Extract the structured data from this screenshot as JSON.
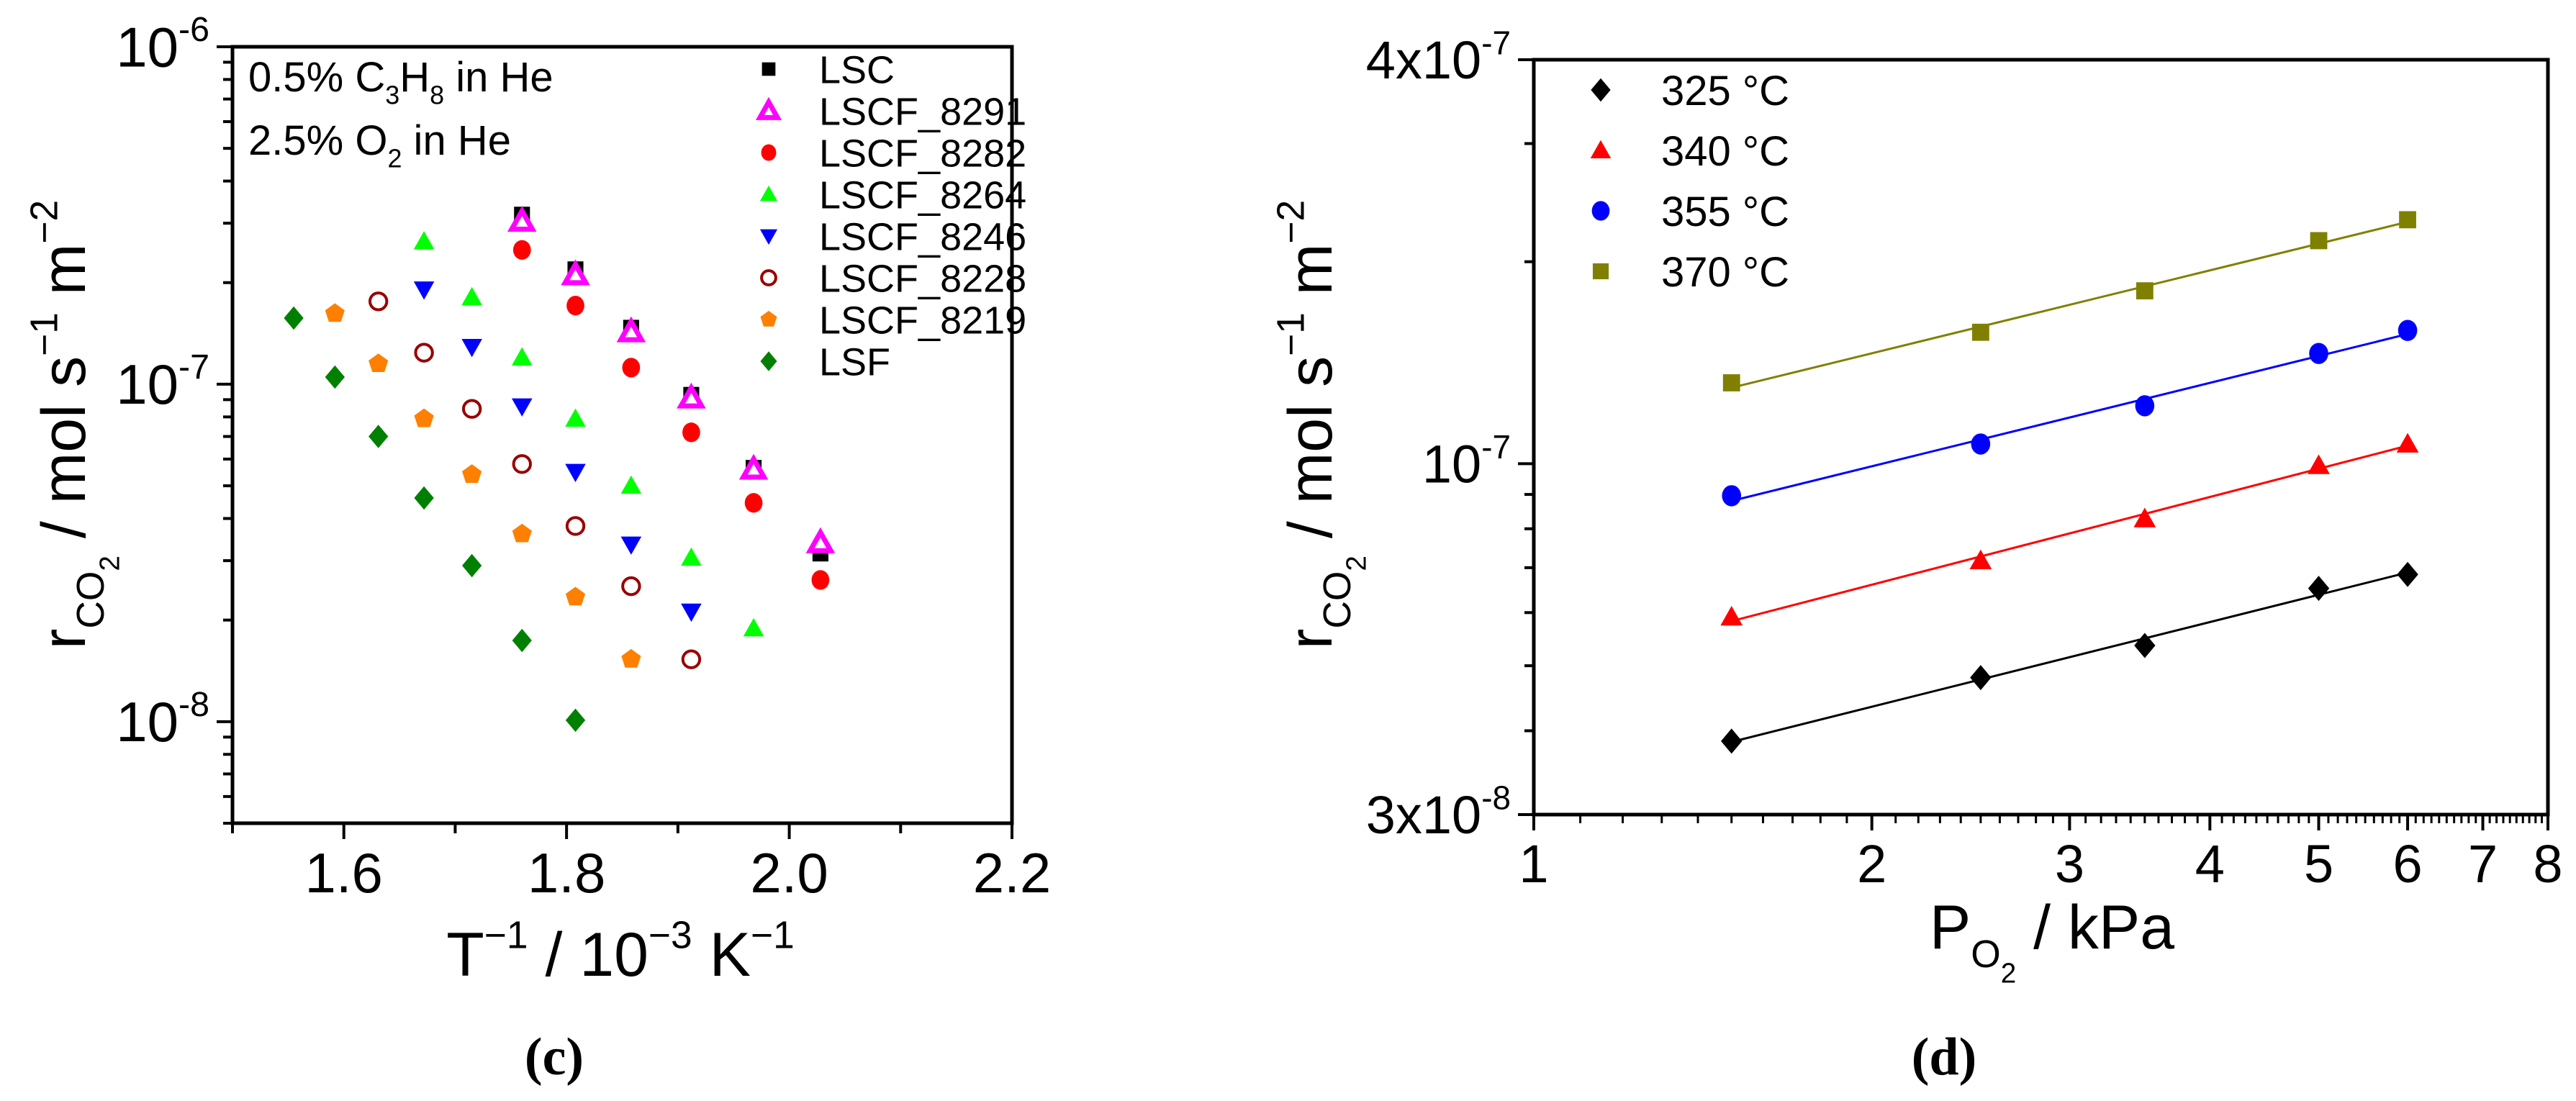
{
  "chart_data": [
    {
      "type": "scatter",
      "panel_label": "(c)",
      "title": "",
      "xlabel_parts": [
        [
          "T",
          0
        ],
        [
          "−1",
          1
        ],
        [
          " / 10",
          0
        ],
        [
          "−3",
          1
        ],
        [
          " K",
          0
        ],
        [
          "−1",
          1
        ]
      ],
      "ylabel_parts": [
        [
          "r",
          0
        ],
        [
          "CO",
          -1
        ],
        [
          "2",
          -2
        ],
        [
          " / mol s",
          0
        ],
        [
          "−1",
          1
        ],
        [
          " m",
          0
        ],
        [
          "−2",
          1
        ]
      ],
      "xscale": "linear",
      "yscale": "log",
      "xlim": [
        1.5,
        2.2
      ],
      "ylim": [
        5e-09,
        1e-06
      ],
      "xticks": [
        {
          "value": 1.6,
          "label": "1.6"
        },
        {
          "value": 1.8,
          "label": "1.8"
        },
        {
          "value": 2.0,
          "label": "2.0"
        },
        {
          "value": 2.2,
          "label": "2.2"
        }
      ],
      "xminor": [
        1.5,
        1.7,
        1.9,
        2.1
      ],
      "yticks": [
        {
          "value": 1e-08,
          "label": "10^-8"
        },
        {
          "value": 1e-07,
          "label": "10^-7"
        },
        {
          "value": 1e-06,
          "label": "10^-6"
        }
      ],
      "grid": false,
      "legend_position": "top-right",
      "annotations": [
        [
          [
            "0.5% C",
            0
          ],
          [
            "3",
            -1
          ],
          [
            "H",
            0
          ],
          [
            "8",
            -1
          ],
          [
            " in He",
            0
          ]
        ],
        [
          [
            "2.5% O",
            0
          ],
          [
            "2",
            -1
          ],
          [
            " in He",
            0
          ]
        ]
      ],
      "series": [
        {
          "name": "LSC",
          "marker": "square",
          "color": "#000000",
          "x": [
            1.76,
            1.808,
            1.858,
            1.912,
            1.968,
            2.028
          ],
          "y": [
            3.18e-07,
            2.19e-07,
            1.47e-07,
            9.3e-08,
            5.65e-08,
            3.15e-08
          ]
        },
        {
          "name": "LSCF_8291",
          "marker": "triangle-open",
          "color": "#ff00ff",
          "x": [
            1.76,
            1.808,
            1.858,
            1.912,
            1.968,
            2.028
          ],
          "y": [
            3.04e-07,
            2.11e-07,
            1.43e-07,
            9.1e-08,
            5.6e-08,
            3.39e-08
          ]
        },
        {
          "name": "LSCF_8282",
          "marker": "circle",
          "color": "#ff0000",
          "x": [
            1.76,
            1.808,
            1.858,
            1.912,
            1.968,
            2.028
          ],
          "y": [
            2.5e-07,
            1.71e-07,
            1.12e-07,
            7.2e-08,
            4.45e-08,
            2.63e-08
          ]
        },
        {
          "name": "LSCF_8264",
          "marker": "triangle",
          "color": "#00ff00",
          "x": [
            1.672,
            1.715,
            1.76,
            1.808,
            1.858,
            1.912,
            1.968
          ],
          "y": [
            2.65e-07,
            1.81e-07,
            1.2e-07,
            7.9e-08,
            5e-08,
            3.06e-08,
            1.89e-08
          ]
        },
        {
          "name": "LSCF_8246",
          "marker": "triangle-down",
          "color": "#0000ff",
          "x": [
            1.672,
            1.715,
            1.76,
            1.808,
            1.858,
            1.912
          ],
          "y": [
            1.91e-07,
            1.29e-07,
            8.6e-08,
            5.5e-08,
            3.35e-08,
            2.12e-08
          ]
        },
        {
          "name": "LSCF_8228",
          "marker": "circle-open",
          "color": "#990000",
          "x": [
            1.631,
            1.672,
            1.715,
            1.76,
            1.808,
            1.858,
            1.912
          ],
          "y": [
            1.76e-07,
            1.24e-07,
            8.45e-08,
            5.8e-08,
            3.8e-08,
            2.52e-08,
            1.53e-08
          ]
        },
        {
          "name": "LSCF_8219",
          "marker": "pentagon",
          "color": "#ff8000",
          "x": [
            1.592,
            1.631,
            1.672,
            1.715,
            1.76,
            1.808,
            1.858
          ],
          "y": [
            1.62e-07,
            1.15e-07,
            7.9e-08,
            5.4e-08,
            3.6e-08,
            2.34e-08,
            1.53e-08
          ]
        },
        {
          "name": "LSF",
          "marker": "diamond",
          "color": "#008000",
          "x": [
            1.555,
            1.592,
            1.631,
            1.672,
            1.715,
            1.76,
            1.808
          ],
          "y": [
            1.57e-07,
            1.05e-07,
            7e-08,
            4.6e-08,
            2.9e-08,
            1.74e-08,
            1.01e-08
          ]
        }
      ]
    },
    {
      "type": "scatter",
      "panel_label": "(d)",
      "title": "",
      "xlabel_parts": [
        [
          "P",
          0
        ],
        [
          "O",
          -1
        ],
        [
          "2",
          -2
        ],
        [
          " / kPa",
          0
        ]
      ],
      "ylabel_parts": [
        [
          "r",
          0
        ],
        [
          "CO",
          -1
        ],
        [
          "2",
          -2
        ],
        [
          " / mol s",
          0
        ],
        [
          "−1",
          1
        ],
        [
          " m",
          0
        ],
        [
          "−2",
          1
        ]
      ],
      "xscale": "log",
      "yscale": "log",
      "xlim": [
        1,
        8
      ],
      "ylim": [
        3e-08,
        4e-07
      ],
      "xticks": [
        {
          "value": 1,
          "label": "1"
        },
        {
          "value": 2,
          "label": "2"
        },
        {
          "value": 3,
          "label": "3"
        },
        {
          "value": 4,
          "label": "4"
        },
        {
          "value": 5,
          "label": "5"
        },
        {
          "value": 6,
          "label": "6"
        },
        {
          "value": 7,
          "label": "7"
        },
        {
          "value": 8,
          "label": "8"
        }
      ],
      "yticks": [
        {
          "value": 3e-08,
          "label": "3x10^-8"
        },
        {
          "value": 1e-07,
          "label": "10^-7"
        },
        {
          "value": 4e-07,
          "label": "4x10^-7"
        }
      ],
      "yminor": [
        4e-08,
        5e-08,
        6e-08,
        7e-08,
        8e-08,
        9e-08,
        2e-07,
        3e-07
      ],
      "grid": false,
      "legend_position": "top-left",
      "fit": "linear fit (log-log)",
      "series": [
        {
          "name": "325 °C",
          "marker": "diamond",
          "color": "#000000",
          "x": [
            1.5,
            2.5,
            3.5,
            5,
            6
          ],
          "y": [
            3.86e-08,
            4.8e-08,
            5.36e-08,
            6.52e-08,
            6.84e-08
          ]
        },
        {
          "name": "340 °C",
          "marker": "triangle",
          "color": "#ff0000",
          "x": [
            1.5,
            2.5,
            3.5,
            5,
            6
          ],
          "y": [
            5.91e-08,
            7.17e-08,
            8.28e-08,
            9.94e-08,
            1.07e-07
          ]
        },
        {
          "name": "355 °C",
          "marker": "circle",
          "color": "#0000ff",
          "x": [
            1.5,
            2.5,
            3.5,
            5,
            6
          ],
          "y": [
            8.96e-08,
            1.07e-07,
            1.22e-07,
            1.46e-07,
            1.58e-07
          ]
        },
        {
          "name": "370 °C",
          "marker": "square",
          "color": "#808000",
          "x": [
            1.5,
            2.5,
            3.5,
            5,
            6
          ],
          "y": [
            1.32e-07,
            1.57e-07,
            1.81e-07,
            2.15e-07,
            2.31e-07
          ]
        }
      ]
    }
  ]
}
